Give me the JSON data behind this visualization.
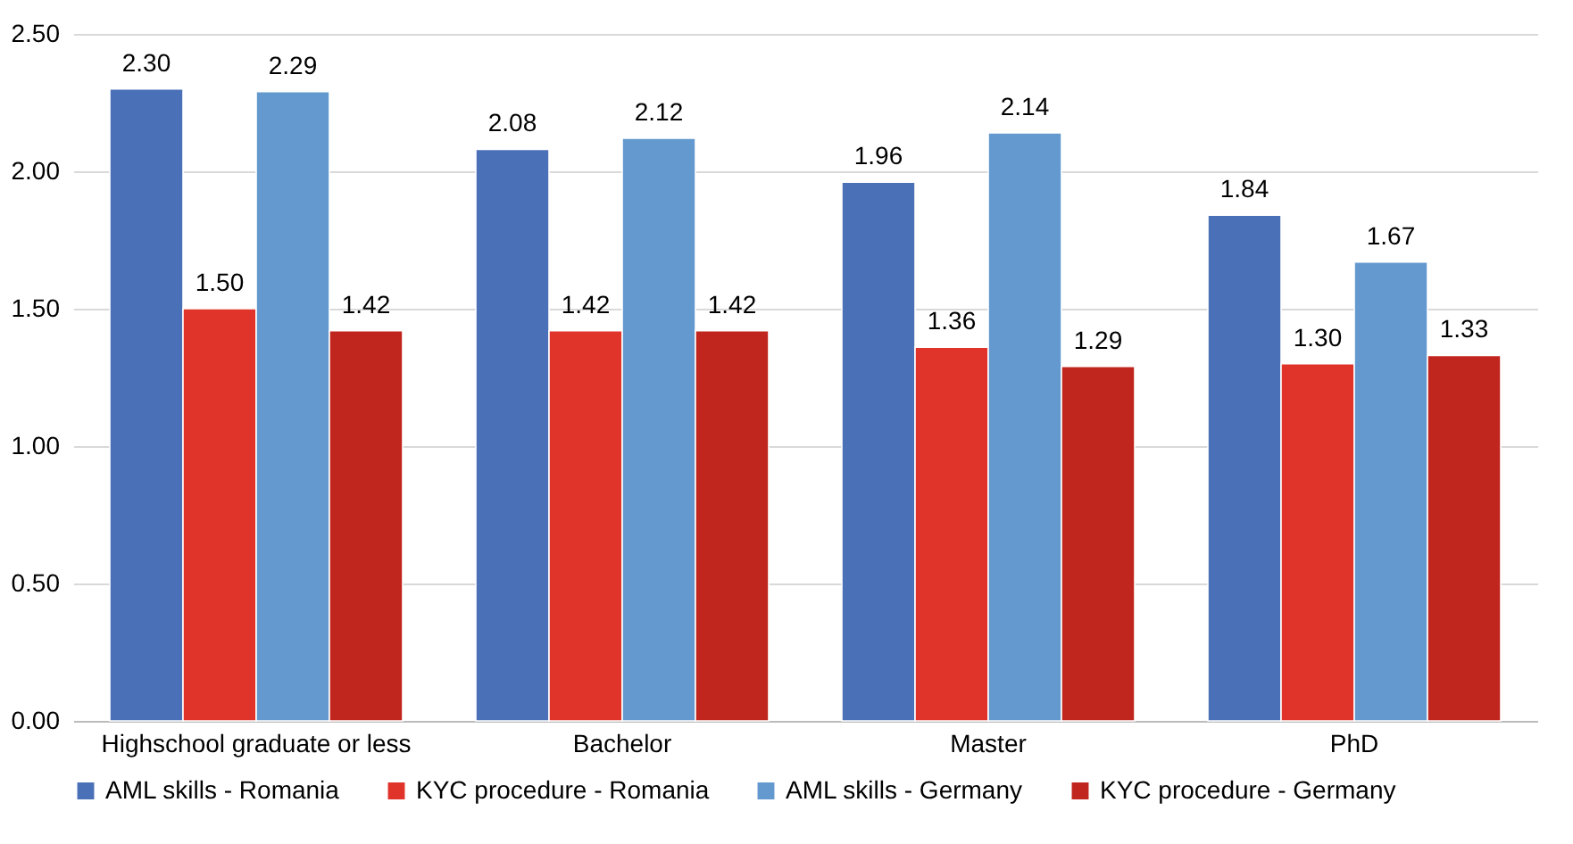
{
  "chart_data": {
    "type": "bar",
    "categories": [
      "Highschool graduate or less",
      "Bachelor",
      "Master",
      "PhD"
    ],
    "series": [
      {
        "name": "AML skills - Romania",
        "color": "#4a70b8",
        "values": [
          2.3,
          2.08,
          1.96,
          1.84
        ],
        "value_labels": [
          "2.30",
          "2.08",
          "1.96",
          "1.84"
        ]
      },
      {
        "name": "KYC procedure - Romania",
        "color": "#e0342a",
        "values": [
          1.5,
          1.42,
          1.36,
          1.3
        ],
        "value_labels": [
          "1.50",
          "1.42",
          "1.36",
          "1.30"
        ]
      },
      {
        "name": "AML skills - Germany",
        "color": "#6399cf",
        "values": [
          2.29,
          2.12,
          2.14,
          1.67
        ],
        "value_labels": [
          "2.29",
          "2.12",
          "2.14",
          "1.67"
        ]
      },
      {
        "name": "KYC procedure - Germany",
        "color": "#c0261e",
        "values": [
          1.42,
          1.42,
          1.29,
          1.33
        ],
        "value_labels": [
          "1.42",
          "1.42",
          "1.29",
          "1.33"
        ]
      }
    ],
    "ylim": [
      0,
      2.5
    ],
    "yticks": [
      {
        "value": 0,
        "label": "0.00"
      },
      {
        "value": 0.5,
        "label": "0.50"
      },
      {
        "value": 1,
        "label": "1.00"
      },
      {
        "value": 1.5,
        "label": "1.50"
      },
      {
        "value": 2,
        "label": "2.00"
      },
      {
        "value": 2.5,
        "label": "2.50"
      }
    ],
    "grid": "y",
    "legend": "bottom"
  }
}
